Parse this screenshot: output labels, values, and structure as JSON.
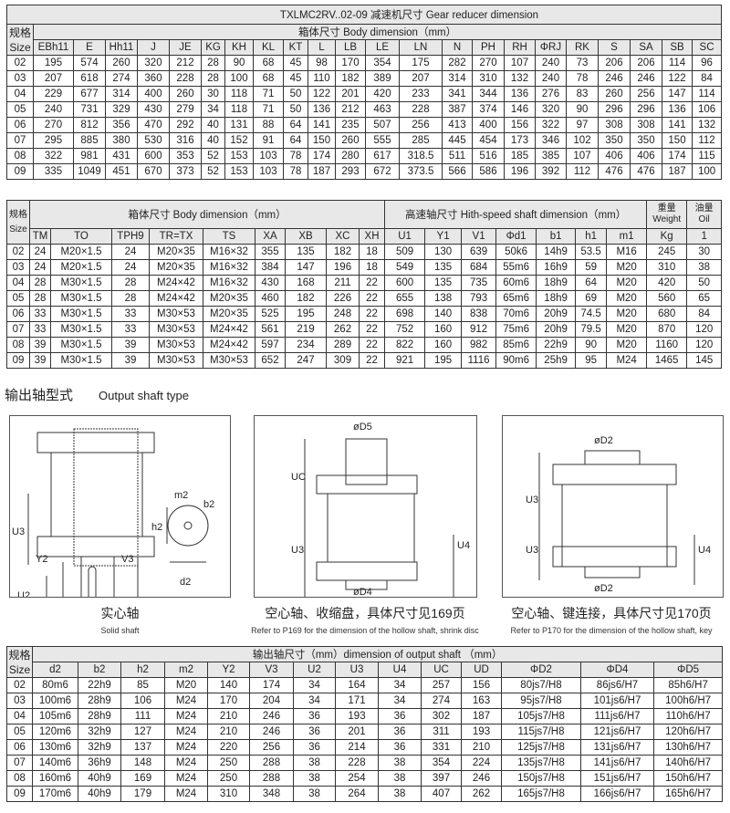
{
  "table1": {
    "title": "TXLMC2RV..02-09  减速机尺寸   Gear reducer dimension",
    "size_label_cn": "规格",
    "size_label_en": "Size",
    "group": "箱体尺寸  Body dimension（mm）",
    "columns": [
      "EBh11",
      "E",
      "Hh11",
      "J",
      "JE",
      "KG",
      "KH",
      "KL",
      "KT",
      "L",
      "LB",
      "LE",
      "LN",
      "N",
      "PH",
      "RH",
      "ΦRJ",
      "RK",
      "S",
      "SA",
      "SB",
      "SC"
    ],
    "rows": [
      [
        "02",
        "195",
        "574",
        "260",
        "320",
        "212",
        "28",
        "90",
        "68",
        "45",
        "98",
        "170",
        "354",
        "175",
        "282",
        "270",
        "107",
        "240",
        "73",
        "206",
        "206",
        "114",
        "96"
      ],
      [
        "03",
        "207",
        "618",
        "274",
        "360",
        "228",
        "28",
        "100",
        "68",
        "45",
        "110",
        "182",
        "389",
        "207",
        "314",
        "310",
        "132",
        "240",
        "78",
        "246",
        "246",
        "122",
        "84"
      ],
      [
        "04",
        "229",
        "677",
        "314",
        "400",
        "260",
        "30",
        "118",
        "71",
        "50",
        "122",
        "201",
        "420",
        "233",
        "341",
        "344",
        "136",
        "276",
        "83",
        "260",
        "256",
        "147",
        "114"
      ],
      [
        "05",
        "240",
        "731",
        "329",
        "430",
        "279",
        "34",
        "118",
        "71",
        "50",
        "136",
        "212",
        "463",
        "228",
        "387",
        "374",
        "146",
        "320",
        "90",
        "296",
        "296",
        "136",
        "106"
      ],
      [
        "06",
        "270",
        "812",
        "356",
        "470",
        "292",
        "40",
        "131",
        "88",
        "64",
        "141",
        "235",
        "507",
        "256",
        "413",
        "400",
        "156",
        "322",
        "97",
        "308",
        "308",
        "141",
        "132"
      ],
      [
        "07",
        "295",
        "885",
        "380",
        "530",
        "316",
        "40",
        "152",
        "91",
        "64",
        "150",
        "260",
        "555",
        "285",
        "445",
        "454",
        "173",
        "346",
        "102",
        "350",
        "350",
        "150",
        "112"
      ],
      [
        "08",
        "322",
        "981",
        "431",
        "600",
        "353",
        "52",
        "153",
        "103",
        "78",
        "174",
        "280",
        "617",
        "318.5",
        "511",
        "516",
        "185",
        "385",
        "107",
        "406",
        "406",
        "174",
        "115"
      ],
      [
        "09",
        "335",
        "1049",
        "451",
        "670",
        "373",
        "52",
        "153",
        "103",
        "78",
        "187",
        "293",
        "672",
        "373.5",
        "566",
        "586",
        "196",
        "392",
        "112",
        "476",
        "476",
        "187",
        "100"
      ]
    ]
  },
  "table2": {
    "size_label_cn": "规格",
    "size_label_en": "Size",
    "group_body": "箱体尺寸  Body dimension（mm）",
    "group_shaft": "高速轴尺寸  Hith-speed shaft dimension（mm）",
    "weight_cn": "重量",
    "weight_en": "Weight",
    "oil_cn": "油量",
    "oil_en": "Oil",
    "columns": [
      "TM",
      "TO",
      "TPH9",
      "TR=TX",
      "TS",
      "XA",
      "XB",
      "XC",
      "XH",
      "U1",
      "Y1",
      "V1",
      "Φd1",
      "b1",
      "h1",
      "m1",
      "Kg",
      "1"
    ],
    "rows": [
      [
        "02",
        "24",
        "M20×1.5",
        "24",
        "M20×35",
        "M16×32",
        "355",
        "135",
        "182",
        "18",
        "509",
        "130",
        "639",
        "50k6",
        "14h9",
        "53.5",
        "M16",
        "245",
        "30"
      ],
      [
        "03",
        "24",
        "M20×1.5",
        "24",
        "M20×35",
        "M16×32",
        "384",
        "147",
        "196",
        "18",
        "549",
        "135",
        "684",
        "55m6",
        "16h9",
        "59",
        "M20",
        "310",
        "38"
      ],
      [
        "04",
        "28",
        "M30×1.5",
        "28",
        "M24×42",
        "M16×32",
        "430",
        "168",
        "211",
        "22",
        "600",
        "135",
        "735",
        "60m6",
        "18h9",
        "64",
        "M20",
        "420",
        "50"
      ],
      [
        "05",
        "28",
        "M30×1.5",
        "28",
        "M24×42",
        "M20×35",
        "460",
        "182",
        "226",
        "22",
        "655",
        "138",
        "793",
        "65m6",
        "18h9",
        "69",
        "M20",
        "560",
        "65"
      ],
      [
        "06",
        "33",
        "M30×1.5",
        "33",
        "M30×53",
        "M20×35",
        "525",
        "195",
        "248",
        "22",
        "698",
        "140",
        "838",
        "70m6",
        "20h9",
        "74.5",
        "M20",
        "680",
        "84"
      ],
      [
        "07",
        "33",
        "M30×1.5",
        "33",
        "M30×53",
        "M24×42",
        "561",
        "219",
        "262",
        "22",
        "752",
        "160",
        "912",
        "75m6",
        "20h9",
        "79.5",
        "M20",
        "870",
        "120"
      ],
      [
        "08",
        "39",
        "M30×1.5",
        "39",
        "M30×53",
        "M24×42",
        "597",
        "234",
        "289",
        "22",
        "822",
        "160",
        "982",
        "85m6",
        "22h9",
        "90",
        "M20",
        "1160",
        "120"
      ],
      [
        "09",
        "39",
        "M30×1.5",
        "39",
        "M30×53",
        "M30×53",
        "652",
        "247",
        "309",
        "22",
        "921",
        "195",
        "1116",
        "90m6",
        "25h9",
        "95",
        "M24",
        "1465",
        "145"
      ]
    ]
  },
  "section": {
    "title_cn": "输出轴型式",
    "title_en": "Output shaft type"
  },
  "drawings": [
    {
      "caption_cn": "实心轴",
      "caption_en": "Solid shaft",
      "labels": [
        "U3",
        "U2",
        "Y2",
        "V3",
        "m2",
        "b2",
        "h2",
        "d2"
      ]
    },
    {
      "caption_cn": "空心轴、收缩盘，具体尺寸见169页",
      "caption_en": "Refer to P169 for the dimension of the hollow shaft, shrink disc",
      "labels": [
        "øD5",
        "UC",
        "U3",
        "U4",
        "øD4"
      ]
    },
    {
      "caption_cn": "空心轴、键连接，具体尺寸见170页",
      "caption_en": "Refer to P170 for the dimension of the hollow shaft, key",
      "labels": [
        "øD2",
        "U3",
        "U3",
        "U4",
        "øD2"
      ]
    }
  ],
  "table3": {
    "size_label_cn": "规格",
    "size_label_en": "Size",
    "group": "输出轴尺寸（mm）dimension of output shaft （mm）",
    "columns": [
      "d2",
      "b2",
      "h2",
      "m2",
      "Y2",
      "V3",
      "U2",
      "U3",
      "U4",
      "UC",
      "UD",
      "ΦD2",
      "ΦD4",
      "ΦD5"
    ],
    "rows": [
      [
        "02",
        "80m6",
        "22h9",
        "85",
        "M20",
        "140",
        "174",
        "34",
        "164",
        "34",
        "257",
        "156",
        "80js7/H8",
        "86js6/H7",
        "85h6/H7"
      ],
      [
        "03",
        "100m6",
        "28h9",
        "106",
        "M24",
        "170",
        "204",
        "34",
        "171",
        "34",
        "274",
        "163",
        "95js7/H8",
        "101js6/H7",
        "100h6/H7"
      ],
      [
        "04",
        "105m6",
        "28h9",
        "111",
        "M24",
        "210",
        "246",
        "36",
        "193",
        "36",
        "302",
        "187",
        "105js7/H8",
        "111js6/H7",
        "110h6/H7"
      ],
      [
        "05",
        "120m6",
        "32h9",
        "127",
        "M24",
        "210",
        "246",
        "36",
        "201",
        "36",
        "311",
        "193",
        "115js7/H8",
        "121js6/H7",
        "120h6/H7"
      ],
      [
        "06",
        "130m6",
        "32h9",
        "137",
        "M24",
        "220",
        "256",
        "36",
        "214",
        "36",
        "331",
        "210",
        "125js7/H8",
        "131js6/H7",
        "130h6/H7"
      ],
      [
        "07",
        "140m6",
        "36h9",
        "148",
        "M24",
        "250",
        "288",
        "38",
        "228",
        "38",
        "354",
        "224",
        "135js7/H8",
        "141js6/H7",
        "140h6/H7"
      ],
      [
        "08",
        "160m6",
        "40h9",
        "169",
        "M24",
        "250",
        "288",
        "38",
        "254",
        "38",
        "397",
        "246",
        "150js7/H8",
        "151js6/H7",
        "150h6/H7"
      ],
      [
        "09",
        "170m6",
        "40h9",
        "179",
        "M24",
        "310",
        "348",
        "38",
        "264",
        "38",
        "407",
        "262",
        "165js7/H8",
        "166js6/H7",
        "165h6/H7"
      ]
    ]
  }
}
